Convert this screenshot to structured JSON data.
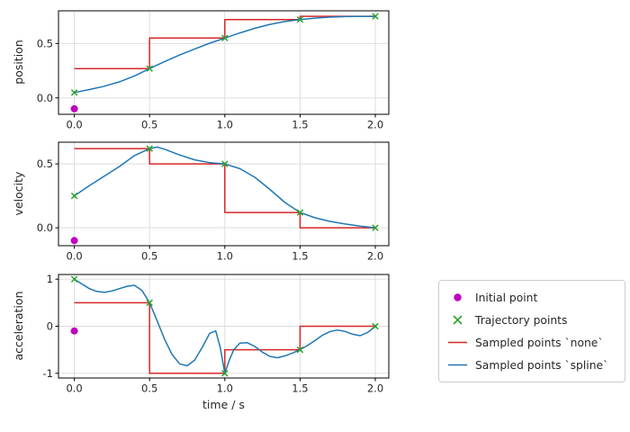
{
  "figure": {
    "xlabel": "time / s",
    "xlim": [
      -0.105,
      2.09
    ],
    "xticks": [
      0,
      0.5,
      1,
      1.5,
      2
    ],
    "xtick_labels": [
      "0.0",
      "0.5",
      "1.0",
      "1.5",
      "2.0"
    ],
    "grid": true,
    "legend_position": "outside-right-bottom"
  },
  "colors": {
    "initial": "#bf00bf",
    "trajectory": "#2ca02c",
    "none": "#d62728",
    "spline": "#1f77b4",
    "grid": "#d9d9d9",
    "axis": "#262626"
  },
  "legend": {
    "items": [
      {
        "label": "Initial point",
        "marker": "circle"
      },
      {
        "label": "Trajectory points",
        "marker": "x"
      },
      {
        "label": "Sampled points `none`",
        "marker": "line"
      },
      {
        "label": "Sampled points `spline`",
        "marker": "line"
      }
    ]
  },
  "chart_data": [
    {
      "type": "line",
      "ylabel": "position",
      "ylim": [
        -0.15,
        0.8
      ],
      "yticks": [
        0,
        0.5
      ],
      "ytick_labels": [
        "0.0",
        "0.5"
      ],
      "initial_point": {
        "x": 0,
        "y": -0.1
      },
      "trajectory_points": {
        "x": [
          0,
          0.5,
          1,
          1.5,
          2
        ],
        "y": [
          0.05,
          0.27,
          0.55,
          0.72,
          0.75
        ]
      },
      "sampled_none": {
        "x": [
          0,
          0.5,
          0.5,
          1,
          1,
          1.5,
          1.5,
          2
        ],
        "y": [
          0.27,
          0.27,
          0.55,
          0.55,
          0.72,
          0.72,
          0.75,
          0.75
        ]
      },
      "sampled_spline": {
        "x": [
          0,
          0.1,
          0.2,
          0.3,
          0.4,
          0.5,
          0.6,
          0.7,
          0.8,
          0.9,
          1,
          1.1,
          1.2,
          1.3,
          1.4,
          1.5,
          1.6,
          1.7,
          1.8,
          1.9,
          2
        ],
        "y": [
          0.05,
          0.077,
          0.108,
          0.148,
          0.202,
          0.27,
          0.334,
          0.394,
          0.45,
          0.503,
          0.55,
          0.597,
          0.64,
          0.675,
          0.702,
          0.72,
          0.733,
          0.742,
          0.747,
          0.749,
          0.75
        ]
      }
    },
    {
      "type": "line",
      "ylabel": "velocity",
      "ylim": [
        -0.14,
        0.67
      ],
      "yticks": [
        0,
        0.5
      ],
      "ytick_labels": [
        "0.0",
        "0.5"
      ],
      "initial_point": {
        "x": 0,
        "y": -0.1
      },
      "trajectory_points": {
        "x": [
          0,
          0.5,
          1,
          1.5,
          2
        ],
        "y": [
          0.25,
          0.62,
          0.5,
          0.12,
          0
        ]
      },
      "sampled_none": {
        "x": [
          0,
          0.5,
          0.5,
          1,
          1,
          1.5,
          1.5,
          2
        ],
        "y": [
          0.62,
          0.62,
          0.5,
          0.5,
          0.12,
          0.12,
          0,
          0
        ]
      },
      "sampled_spline": {
        "x": [
          0,
          0.1,
          0.2,
          0.3,
          0.4,
          0.5,
          0.55,
          0.6,
          0.7,
          0.8,
          0.9,
          1,
          1.1,
          1.2,
          1.3,
          1.4,
          1.5,
          1.6,
          1.7,
          1.8,
          1.9,
          2
        ],
        "y": [
          0.25,
          0.33,
          0.405,
          0.48,
          0.565,
          0.62,
          0.632,
          0.615,
          0.57,
          0.532,
          0.51,
          0.5,
          0.463,
          0.395,
          0.3,
          0.198,
          0.12,
          0.078,
          0.05,
          0.03,
          0.013,
          0
        ]
      }
    },
    {
      "type": "line",
      "ylabel": "acceleration",
      "ylim": [
        -1.1,
        1.1
      ],
      "yticks": [
        -1,
        0,
        1
      ],
      "ytick_labels": [
        "-1",
        "0",
        "1"
      ],
      "initial_point": {
        "x": 0,
        "y": -0.1
      },
      "trajectory_points": {
        "x": [
          0,
          0.5,
          1,
          1.5,
          2
        ],
        "y": [
          1,
          0.5,
          -1,
          -0.5,
          0
        ]
      },
      "sampled_none": {
        "x": [
          0,
          0.5,
          0.5,
          1,
          1,
          1.5,
          1.5,
          2
        ],
        "y": [
          0.5,
          0.5,
          -1,
          -1,
          -0.5,
          -0.5,
          0,
          0
        ]
      },
      "sampled_spline": {
        "x": [
          0,
          0.05,
          0.1,
          0.15,
          0.2,
          0.25,
          0.3,
          0.35,
          0.4,
          0.45,
          0.5,
          0.55,
          0.6,
          0.65,
          0.7,
          0.75,
          0.8,
          0.85,
          0.9,
          0.94,
          0.97,
          1,
          1.03,
          1.06,
          1.1,
          1.15,
          1.2,
          1.25,
          1.3,
          1.35,
          1.4,
          1.45,
          1.5,
          1.55,
          1.6,
          1.65,
          1.7,
          1.75,
          1.8,
          1.85,
          1.9,
          1.95,
          2
        ],
        "y": [
          1,
          0.9,
          0.8,
          0.74,
          0.72,
          0.75,
          0.8,
          0.85,
          0.87,
          0.76,
          0.5,
          0.12,
          -0.28,
          -0.6,
          -0.8,
          -0.84,
          -0.72,
          -0.45,
          -0.15,
          -0.1,
          -0.45,
          -1,
          -0.72,
          -0.5,
          -0.36,
          -0.35,
          -0.43,
          -0.55,
          -0.64,
          -0.67,
          -0.63,
          -0.57,
          -0.5,
          -0.41,
          -0.3,
          -0.19,
          -0.11,
          -0.08,
          -0.11,
          -0.17,
          -0.2,
          -0.13,
          0
        ]
      }
    }
  ]
}
